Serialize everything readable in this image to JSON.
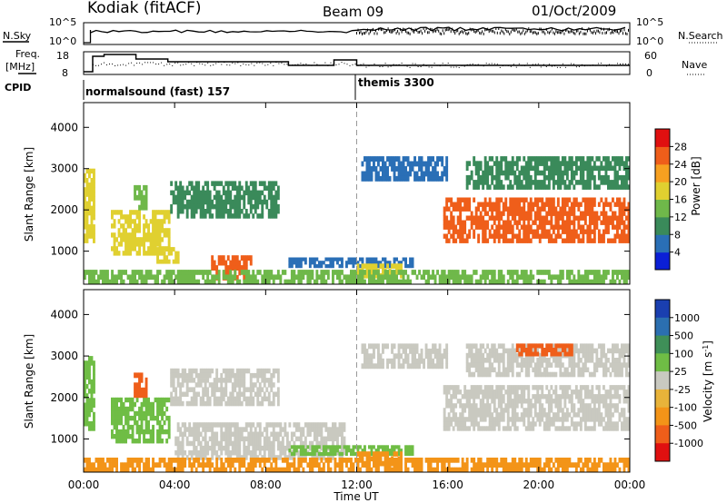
{
  "header": {
    "station": "Kodiak (fitACF)",
    "beam": "Beam 09",
    "date": "01/Oct/2009"
  },
  "top_panels": {
    "nsky_label": "N.Sky",
    "nsky_ticks": [
      "10^5",
      "10^0"
    ],
    "nsearch_label": "N.Search",
    "nsearch_ticks": [
      "10^5",
      "10^0"
    ],
    "freq_label_line1": "Freq.",
    "freq_label_line2": "[MHz]",
    "freq_ticks": [
      "18",
      "8"
    ],
    "nave_label": "Nave",
    "nave_ticks": [
      "60",
      "0"
    ],
    "cpid_label": "CPID",
    "cpid_segments": [
      {
        "label": "normalsound (fast) 157",
        "start": 0,
        "end": 12
      },
      {
        "label": "themis 3300",
        "start": 12,
        "end": 24
      }
    ]
  },
  "x_axis": {
    "label": "Time UT",
    "ticks": [
      "00:00",
      "04:00",
      "08:00",
      "12:00",
      "16:00",
      "20:00",
      "00:00"
    ],
    "range": [
      0,
      24
    ]
  },
  "colors": {
    "power_scale": [
      "#0b1fd6",
      "#2a6fb6",
      "#3a8a5a",
      "#6fb84a",
      "#e0d030",
      "#f7a020",
      "#ef5e1a",
      "#e01010"
    ],
    "velocity_scale": [
      "#e01010",
      "#ef5e1a",
      "#f39418",
      "#e8b33a",
      "#c9c9c0",
      "#6fbd45",
      "#3f8f58",
      "#2b6fb0",
      "#1a3fb0"
    ]
  },
  "chart_data": [
    {
      "type": "heatmap",
      "name": "power",
      "ylabel": "Slant Range [km]",
      "xlabel": "Time UT",
      "ylim": [
        200,
        4600
      ],
      "xlim": [
        0,
        24
      ],
      "yticks": [
        1000,
        2000,
        3000,
        4000
      ],
      "colorbar_label": "Power [dB]",
      "colorbar_ticks": [
        "4",
        "8",
        "12",
        "16",
        "20",
        "24",
        "28"
      ],
      "colorbar_range": [
        0,
        32
      ],
      "echo_regions": [
        {
          "t0": 0.0,
          "t1": 0.5,
          "r0": 1200,
          "r1": 3000,
          "level": 18
        },
        {
          "t0": 1.2,
          "t1": 3.8,
          "r0": 900,
          "r1": 2000,
          "level": 16
        },
        {
          "t0": 2.2,
          "t1": 2.8,
          "r0": 2000,
          "r1": 2600,
          "level": 12
        },
        {
          "t0": 3.8,
          "t1": 8.6,
          "r0": 1800,
          "r1": 2700,
          "level": 8
        },
        {
          "t0": 3.2,
          "t1": 4.2,
          "r0": 700,
          "r1": 1100,
          "level": 18
        },
        {
          "t0": 5.6,
          "t1": 7.4,
          "r0": 300,
          "r1": 900,
          "level": 24
        },
        {
          "t0": 9.0,
          "t1": 14.5,
          "r0": 600,
          "r1": 850,
          "level": 6
        },
        {
          "t0": 12.0,
          "t1": 14.0,
          "r0": 350,
          "r1": 700,
          "level": 18
        },
        {
          "t0": 12.2,
          "t1": 16.0,
          "r0": 2700,
          "r1": 3300,
          "level": 6
        },
        {
          "t0": 15.8,
          "t1": 24.0,
          "r0": 1200,
          "r1": 2300,
          "level": 26
        },
        {
          "t0": 16.8,
          "t1": 24.0,
          "r0": 2500,
          "r1": 3300,
          "level": 10
        },
        {
          "t0": 0.0,
          "t1": 24.0,
          "r0": 200,
          "r1": 550,
          "level": 14
        }
      ]
    },
    {
      "type": "heatmap",
      "name": "velocity",
      "ylabel": "Slant Range [km]",
      "xlabel": "Time UT",
      "ylim": [
        200,
        4600
      ],
      "xlim": [
        0,
        24
      ],
      "yticks": [
        1000,
        2000,
        3000,
        4000
      ],
      "colorbar_label": "Velocity [m s^-1]",
      "colorbar_ticks": [
        "1000",
        "500",
        "100",
        "25",
        "-25",
        "-100",
        "-500",
        "-1000"
      ],
      "echo_regions": [
        {
          "t0": 0.0,
          "t1": 0.5,
          "r0": 1200,
          "r1": 3000,
          "level": 100
        },
        {
          "t0": 1.2,
          "t1": 3.8,
          "r0": 900,
          "r1": 2000,
          "level": 100
        },
        {
          "t0": 2.2,
          "t1": 2.8,
          "r0": 2000,
          "r1": 2600,
          "level": -500
        },
        {
          "t0": 3.8,
          "t1": 8.6,
          "r0": 1800,
          "r1": 2700,
          "level": 0
        },
        {
          "t0": 4.0,
          "t1": 11.5,
          "r0": 500,
          "r1": 1400,
          "level": 0
        },
        {
          "t0": 9.0,
          "t1": 14.5,
          "r0": 600,
          "r1": 850,
          "level": 100
        },
        {
          "t0": 12.0,
          "t1": 14.0,
          "r0": 350,
          "r1": 700,
          "level": -100
        },
        {
          "t0": 12.2,
          "t1": 16.0,
          "r0": 2700,
          "r1": 3300,
          "level": 0
        },
        {
          "t0": 15.8,
          "t1": 24.0,
          "r0": 1200,
          "r1": 2300,
          "level": 0
        },
        {
          "t0": 16.8,
          "t1": 24.0,
          "r0": 2500,
          "r1": 3300,
          "level": 0
        },
        {
          "t0": 19.0,
          "t1": 21.5,
          "r0": 3000,
          "r1": 3300,
          "level": -500
        },
        {
          "t0": 0.0,
          "t1": 24.0,
          "r0": 200,
          "r1": 550,
          "level": -100
        }
      ]
    }
  ]
}
